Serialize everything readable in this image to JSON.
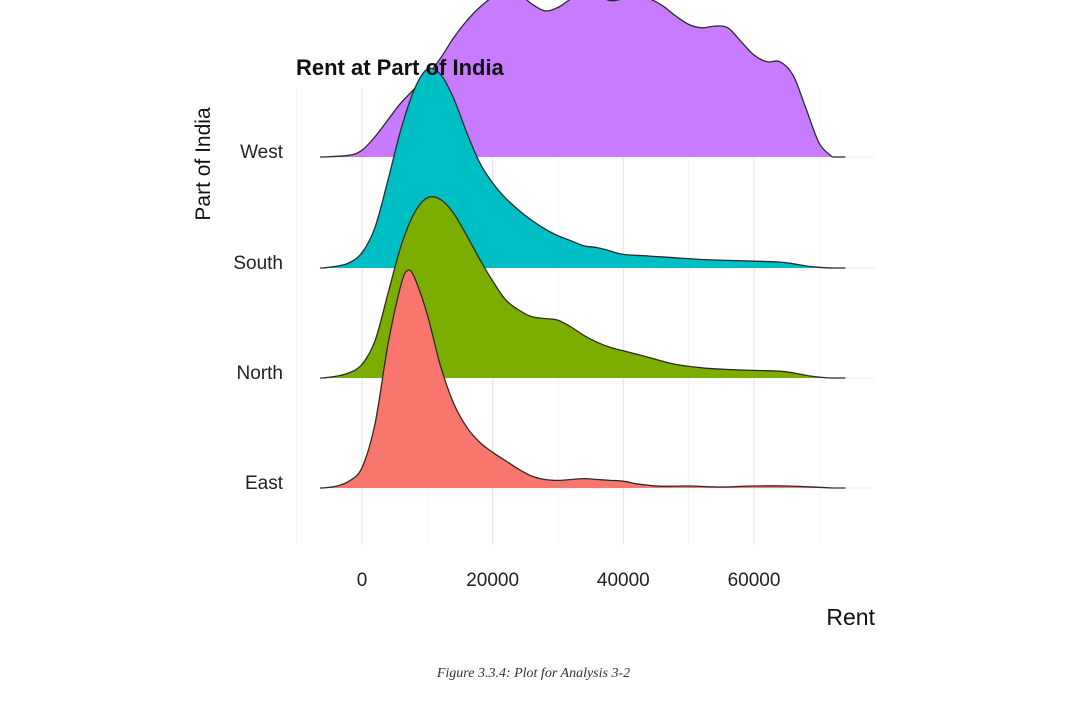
{
  "chart_data": {
    "type": "ridgeline",
    "title": "Rent at Part of India",
    "xlabel": "Rent",
    "ylabel": "Part of India",
    "categories": [
      "East",
      "North",
      "South",
      "West"
    ],
    "xlim": [
      -6000,
      74000
    ],
    "xticks": [
      0,
      20000,
      40000,
      60000
    ],
    "xtick_labels": [
      "0",
      "20000",
      "40000",
      "60000"
    ],
    "grid": true,
    "legend": "none",
    "series": [
      {
        "name": "West",
        "color": "#C77CFF",
        "x": [
          -6000,
          -2000,
          0,
          2000,
          4000,
          6000,
          8000,
          10000,
          12000,
          14000,
          16000,
          18000,
          20000,
          22000,
          24000,
          26000,
          28000,
          30000,
          32000,
          34000,
          36000,
          38000,
          40000,
          42000,
          44000,
          46000,
          48000,
          50000,
          52000,
          54000,
          56000,
          58000,
          60000,
          62000,
          64000,
          66000,
          68000,
          70000,
          72000
        ],
        "density": [
          0.0,
          0.01,
          0.04,
          0.12,
          0.22,
          0.32,
          0.4,
          0.48,
          0.58,
          0.7,
          0.8,
          0.88,
          0.94,
          0.97,
          0.96,
          0.9,
          0.86,
          0.88,
          0.93,
          0.96,
          0.95,
          0.92,
          0.93,
          0.94,
          0.93,
          0.89,
          0.83,
          0.78,
          0.76,
          0.77,
          0.76,
          0.68,
          0.6,
          0.56,
          0.56,
          0.48,
          0.28,
          0.08,
          0.0
        ]
      },
      {
        "name": "South",
        "color": "#00BFC4",
        "x": [
          -6000,
          -4000,
          -2000,
          0,
          2000,
          4000,
          6000,
          8000,
          10000,
          12000,
          14000,
          16000,
          18000,
          20000,
          22000,
          24000,
          26000,
          28000,
          30000,
          32000,
          34000,
          36000,
          38000,
          40000,
          44000,
          48000,
          52000,
          56000,
          60000,
          64000,
          66000,
          68000,
          70000,
          72000
        ],
        "density": [
          0.0,
          0.01,
          0.03,
          0.09,
          0.24,
          0.52,
          0.82,
          1.05,
          1.17,
          1.14,
          1.0,
          0.8,
          0.62,
          0.5,
          0.41,
          0.34,
          0.28,
          0.23,
          0.19,
          0.16,
          0.13,
          0.12,
          0.1,
          0.08,
          0.07,
          0.06,
          0.05,
          0.045,
          0.04,
          0.035,
          0.025,
          0.012,
          0.004,
          0.0
        ]
      },
      {
        "name": "North",
        "color": "#7CAE00",
        "x": [
          -6000,
          -4000,
          -2000,
          0,
          2000,
          4000,
          6000,
          8000,
          10000,
          12000,
          14000,
          16000,
          18000,
          20000,
          22000,
          24000,
          26000,
          28000,
          30000,
          32000,
          34000,
          36000,
          38000,
          40000,
          44000,
          48000,
          52000,
          56000,
          60000,
          64000,
          66000,
          68000,
          70000,
          72000
        ],
        "density": [
          0.0,
          0.01,
          0.03,
          0.08,
          0.22,
          0.5,
          0.78,
          0.97,
          1.06,
          1.05,
          0.97,
          0.84,
          0.7,
          0.57,
          0.46,
          0.4,
          0.36,
          0.35,
          0.34,
          0.3,
          0.25,
          0.21,
          0.18,
          0.16,
          0.12,
          0.08,
          0.06,
          0.05,
          0.045,
          0.04,
          0.03,
          0.015,
          0.005,
          0.0
        ]
      },
      {
        "name": "East",
        "color": "#F8766D",
        "x": [
          -6000,
          -4000,
          -2000,
          0,
          2000,
          4000,
          6000,
          7000,
          8000,
          10000,
          12000,
          14000,
          16000,
          18000,
          20000,
          22000,
          24000,
          26000,
          28000,
          30000,
          32000,
          34000,
          36000,
          38000,
          40000,
          42000,
          44000,
          46000,
          50000,
          55000,
          60000,
          65000,
          70000,
          72000
        ],
        "density": [
          0.0,
          0.01,
          0.04,
          0.12,
          0.38,
          0.85,
          1.2,
          1.28,
          1.24,
          1.02,
          0.72,
          0.5,
          0.36,
          0.27,
          0.21,
          0.16,
          0.11,
          0.07,
          0.05,
          0.045,
          0.05,
          0.055,
          0.05,
          0.045,
          0.04,
          0.025,
          0.015,
          0.01,
          0.012,
          0.006,
          0.012,
          0.012,
          0.004,
          0.0
        ]
      }
    ]
  },
  "caption": "Figure 3.3.4: Plot for Analysis 3-2"
}
